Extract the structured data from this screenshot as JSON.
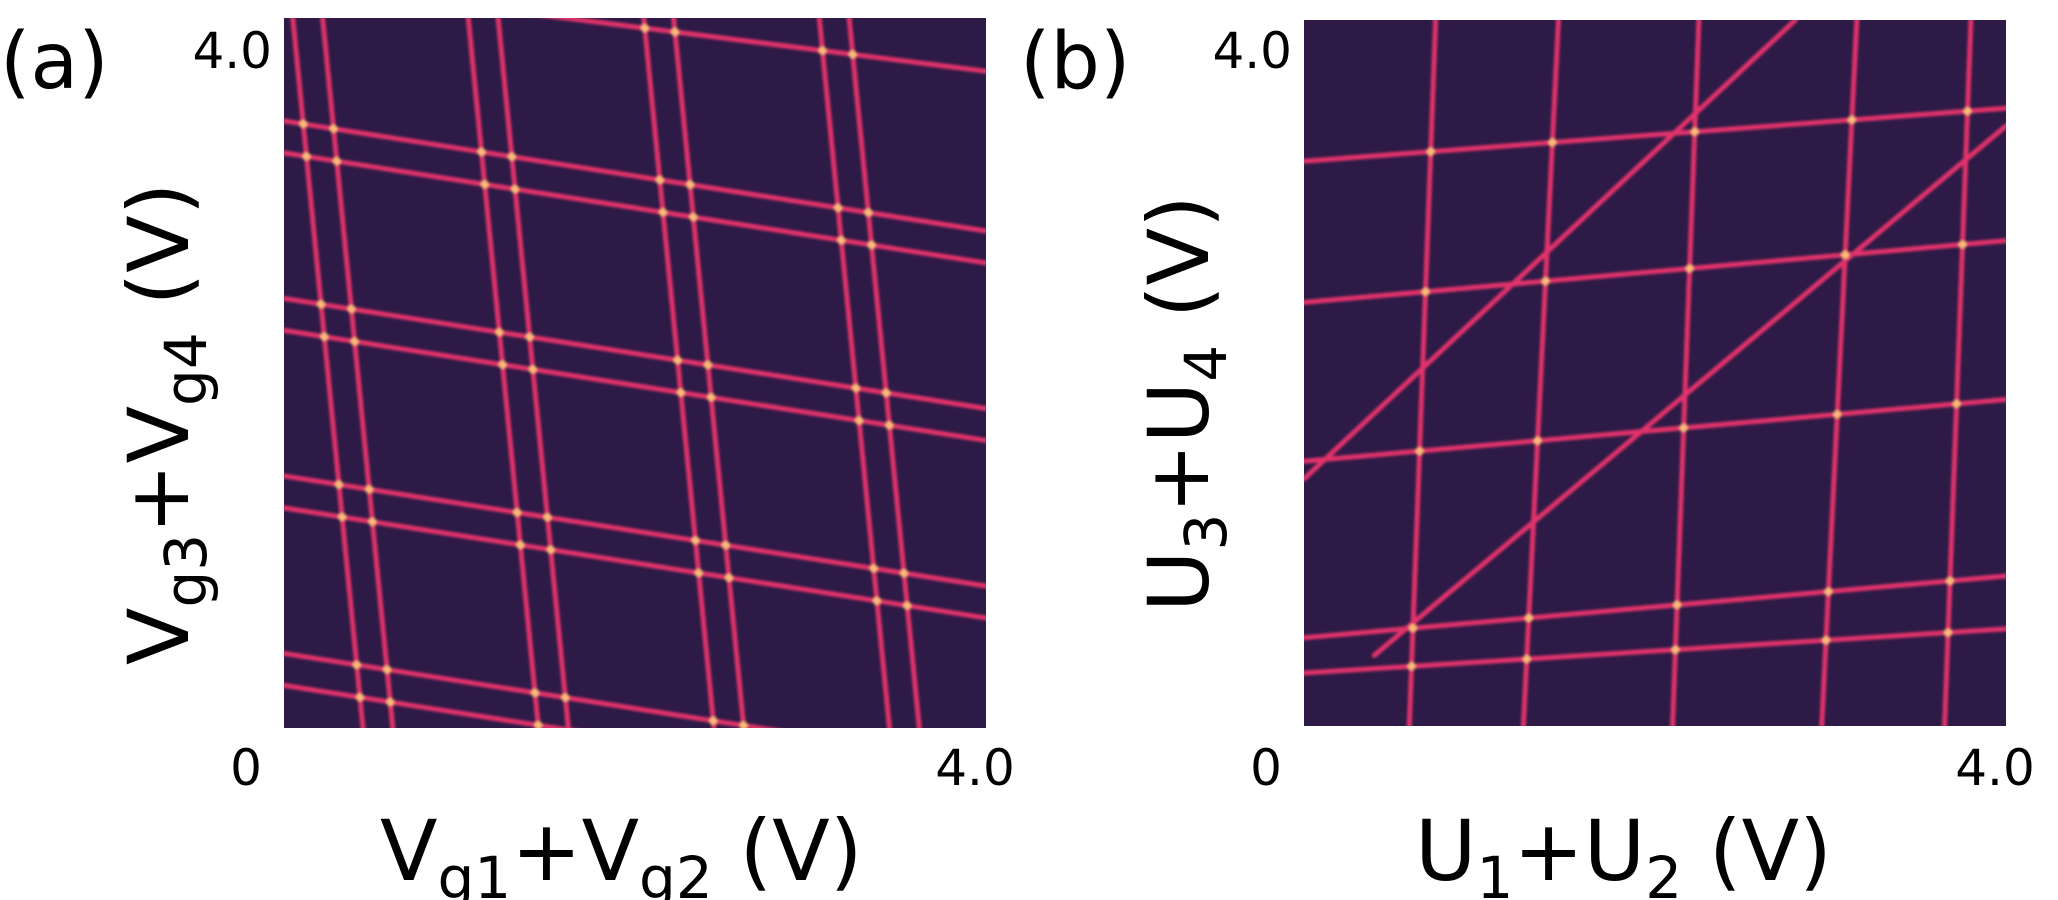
{
  "chart_data": [
    {
      "type": "heatmap",
      "panel_label": "(a)",
      "xlabel": {
        "main": "V",
        "sub1": "g1",
        "mid": "+V",
        "sub2": "g2",
        "unit": " (V)"
      },
      "ylabel": {
        "main": "V",
        "sub1": "g3",
        "mid": "+V",
        "sub2": "g4",
        "unit": " (V)"
      },
      "xlim": [
        0,
        4.0
      ],
      "ylim": [
        0,
        4.0
      ],
      "x_tick_labels": [
        "0",
        "4.0"
      ],
      "y_tick_labels": [
        "4.0"
      ],
      "grid": false,
      "legend": "none",
      "colors": {
        "background": "#2e1a46",
        "line": "#e0336b",
        "highlight": "#ffd27a"
      },
      "lines": {
        "near_horizontal": [
          {
            "y_at_xmin": 3.42,
            "y_at_xmax": 2.8
          },
          {
            "y_at_xmin": 3.24,
            "y_at_xmax": 2.62
          },
          {
            "y_at_xmin": 2.42,
            "y_at_xmax": 1.8
          },
          {
            "y_at_xmin": 2.24,
            "y_at_xmax": 1.62
          },
          {
            "y_at_xmin": 1.42,
            "y_at_xmax": 0.8
          },
          {
            "y_at_xmin": 1.24,
            "y_at_xmax": 0.62
          },
          {
            "y_at_xmin": 0.42,
            "y_at_xmax": -0.2
          },
          {
            "y_at_xmin": 0.24,
            "y_at_xmax": -0.38
          },
          {
            "y_at_xmin": 4.2,
            "y_at_xmax": 3.7
          }
        ],
        "near_vertical": [
          {
            "x_at_ymin": 0.45,
            "x_at_ymax": 0.05
          },
          {
            "x_at_ymin": 0.62,
            "x_at_ymax": 0.22
          },
          {
            "x_at_ymin": 1.45,
            "x_at_ymax": 1.05
          },
          {
            "x_at_ymin": 1.62,
            "x_at_ymax": 1.22
          },
          {
            "x_at_ymin": 2.45,
            "x_at_ymax": 2.05
          },
          {
            "x_at_ymin": 2.62,
            "x_at_ymax": 2.22
          },
          {
            "x_at_ymin": 3.45,
            "x_at_ymax": 3.05
          },
          {
            "x_at_ymin": 3.62,
            "x_at_ymax": 3.22
          }
        ]
      }
    },
    {
      "type": "heatmap",
      "panel_label": "(b)",
      "xlabel": {
        "main": "U",
        "sub1": "1",
        "mid": "+U",
        "sub2": "2",
        "unit": " (V)"
      },
      "ylabel": {
        "main": "U",
        "sub1": "3",
        "mid": "+U",
        "sub2": "4",
        "unit": " (V)"
      },
      "xlim": [
        0,
        4.0
      ],
      "ylim": [
        0,
        4.0
      ],
      "x_tick_labels": [
        "0",
        "4.0"
      ],
      "y_tick_labels": [
        "4.0"
      ],
      "grid": false,
      "legend": "none",
      "colors": {
        "background": "#2e1a46",
        "line": "#e0336b",
        "highlight": "#ffd27a"
      },
      "lines": {
        "near_horizontal": [
          {
            "y_at_xmin": 3.2,
            "y_at_xmax": 3.5
          },
          {
            "y_at_xmin": 2.4,
            "y_at_xmax": 2.75
          },
          {
            "y_at_xmin": 1.5,
            "y_at_xmax": 1.85
          },
          {
            "y_at_xmin": 0.5,
            "y_at_xmax": 0.85
          },
          {
            "y_at_xmin": 0.3,
            "y_at_xmax": 0.55
          }
        ],
        "near_vertical": [
          {
            "x_at_ymin": 0.6,
            "x_at_ymax": 0.75
          },
          {
            "x_at_ymin": 1.25,
            "x_at_ymax": 1.45
          },
          {
            "x_at_ymin": 2.1,
            "x_at_ymax": 2.25
          },
          {
            "x_at_ymin": 2.95,
            "x_at_ymax": 3.15
          },
          {
            "x_at_ymin": 3.65,
            "x_at_ymax": 3.8
          }
        ],
        "diagonal_steps": [
          {
            "x0": 0.4,
            "y0": 0.4,
            "x1": 4.0,
            "y1": 3.4
          },
          {
            "x0": 0.0,
            "y0": 1.4,
            "x1": 2.8,
            "y1": 4.0
          }
        ]
      }
    }
  ]
}
